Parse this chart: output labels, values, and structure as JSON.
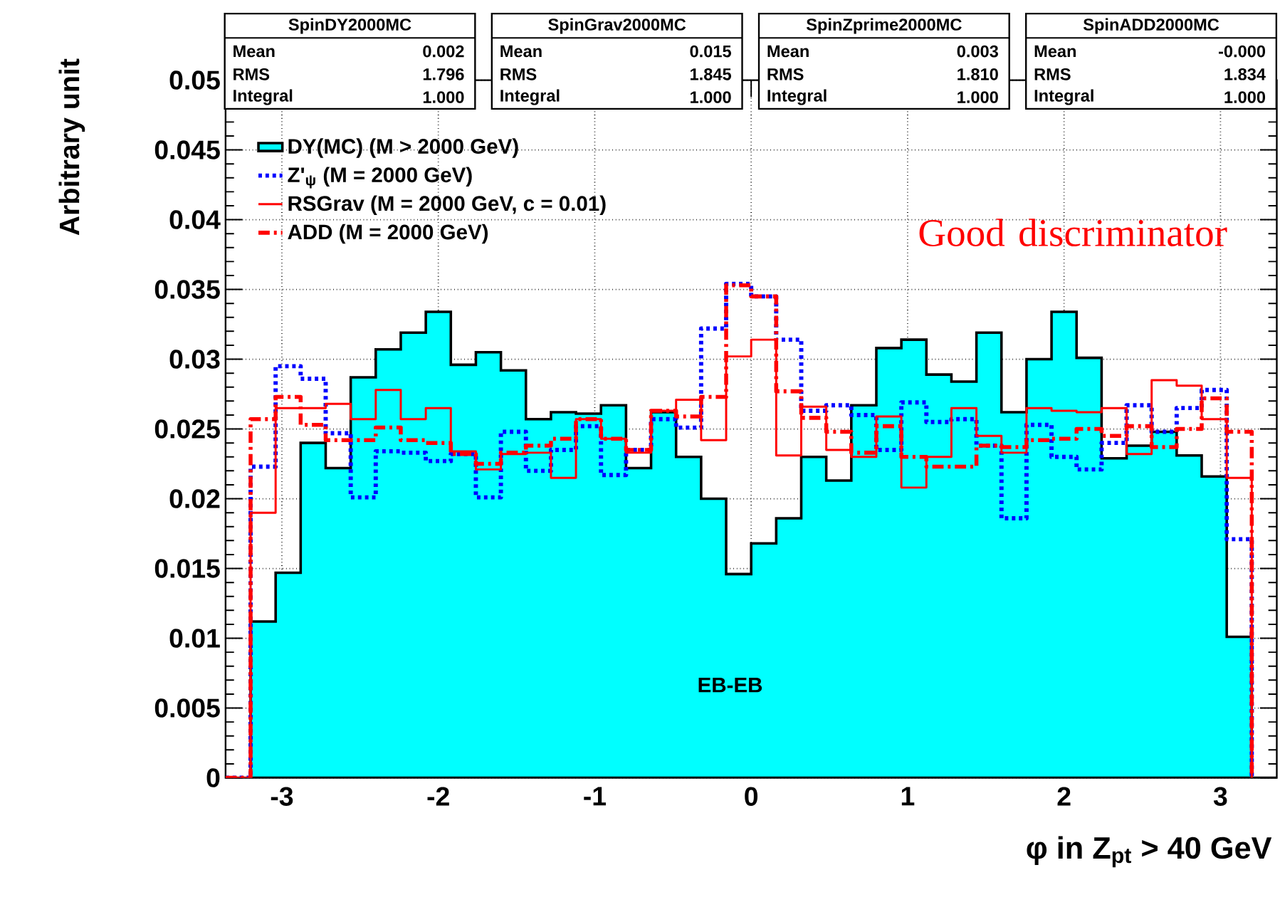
{
  "chart_data": {
    "type": "histogram",
    "xlabel": "φ in Z$_{pt}$ > 40 GeV",
    "ylabel": "Arbitrary unit",
    "bins": [
      -3.36,
      -3.2,
      -3.04,
      -2.88,
      -2.72,
      -2.56,
      -2.4,
      -2.24,
      -2.08,
      -1.92,
      -1.76,
      -1.6,
      -1.44,
      -1.28,
      -1.12,
      -0.96,
      -0.8,
      -0.64,
      -0.48,
      -0.32,
      -0.16,
      0,
      0.16,
      0.32,
      0.48,
      0.64,
      0.8,
      0.96,
      1.12,
      1.28,
      1.44,
      1.6,
      1.76,
      1.92,
      2.08,
      2.24,
      2.4,
      2.56,
      2.72,
      2.88,
      3.04,
      3.2,
      3.36
    ],
    "series": [
      {
        "name": "DY(MC) (M > 2000 GeV)",
        "color": "#00ffff",
        "line_style": "solid",
        "values": [
          0,
          0.0112,
          0.0147,
          0.024,
          0.0222,
          0.0287,
          0.0307,
          0.0319,
          0.0334,
          0.0296,
          0.0305,
          0.0292,
          0.0257,
          0.0262,
          0.0261,
          0.0267,
          0.0222,
          0.0262,
          0.023,
          0.02,
          0.0146,
          0.0168,
          0.0186,
          0.023,
          0.0213,
          0.0267,
          0.0308,
          0.0314,
          0.0289,
          0.0284,
          0.0319,
          0.0262,
          0.03,
          0.0334,
          0.0301,
          0.0229,
          0.0238,
          0.0248,
          0.0231,
          0.0216,
          0.0101,
          0
        ]
      },
      {
        "name": "Z'$_{ψ}$ (M = 2000 GeV)",
        "type": "step",
        "x": [
          -3.36,
          -3.2,
          -3.04,
          -2.88,
          -2.72,
          -2.56,
          -2.4,
          -2.24,
          -2.08,
          -1.92,
          -1.76,
          -1.6,
          -1.44,
          -1.28,
          -1.12,
          -0.96,
          -0.8,
          -0.64,
          -0.48,
          -0.32,
          -0.16,
          0,
          0.16,
          0.32,
          0.48,
          0.64,
          0.8,
          0.96,
          1.12,
          1.28,
          1.44,
          1.6,
          1.76,
          1.92,
          2.08,
          2.24,
          2.4,
          2.56,
          2.72,
          2.88,
          3.04,
          3.2
        ],
        "color": "#0000ff",
        "line_style": "dotted",
        "values": [
          0,
          0.0223,
          0.0295,
          0.0286,
          0.0247,
          0.0201,
          0.0234,
          0.0233,
          0.0227,
          0.0232,
          0.0201,
          0.0248,
          0.022,
          0.0235,
          0.0252,
          0.0217,
          0.0235,
          0.0257,
          0.0251,
          0.0322,
          0.0354,
          0.0345,
          0.0314,
          0.0263,
          0.0267,
          0.026,
          0.0235,
          0.0269,
          0.0255,
          0.0257,
          0.0238,
          0.0186,
          0.0253,
          0.023,
          0.0221,
          0.024,
          0.0267,
          0.0248,
          0.0265,
          0.0278,
          0.0171,
          0
        ]
      },
      {
        "name": "RSGrav (M = 2000 GeV, c = 0.01)",
        "type": "step",
        "x": [
          -3.36,
          -3.2,
          -3.04,
          -2.88,
          -2.72,
          -2.56,
          -2.4,
          -2.24,
          -2.08,
          -1.92,
          -1.76,
          -1.6,
          -1.44,
          -1.28,
          -1.12,
          -0.96,
          -0.8,
          -0.64,
          -0.48,
          -0.32,
          -0.16,
          0,
          0.16,
          0.32,
          0.48,
          0.64,
          0.8,
          0.96,
          1.12,
          1.28,
          1.44,
          1.6,
          1.76,
          1.92,
          2.08,
          2.24,
          2.4,
          2.56,
          2.72,
          2.88,
          3.04,
          3.2
        ],
        "color": "#ff0000",
        "line_style": "solid",
        "values": [
          0,
          0.019,
          0.0265,
          0.0265,
          0.0268,
          0.0257,
          0.0278,
          0.0257,
          0.0265,
          0.0234,
          0.0221,
          0.0232,
          0.0233,
          0.0215,
          0.0257,
          0.0243,
          0.0233,
          0.0263,
          0.0271,
          0.0242,
          0.0302,
          0.0314,
          0.0231,
          0.0266,
          0.0235,
          0.023,
          0.0259,
          0.0208,
          0.023,
          0.0265,
          0.0245,
          0.0233,
          0.0265,
          0.0263,
          0.0262,
          0.0265,
          0.0232,
          0.0285,
          0.0281,
          0.0257,
          0.0215,
          0
        ]
      },
      {
        "name": "ADD (M = 2000 GeV)",
        "type": "step",
        "x": [
          -3.36,
          -3.2,
          -3.04,
          -2.88,
          -2.72,
          -2.56,
          -2.4,
          -2.24,
          -2.08,
          -1.92,
          -1.76,
          -1.6,
          -1.44,
          -1.28,
          -1.12,
          -0.96,
          -0.8,
          -0.64,
          -0.48,
          -0.32,
          -0.16,
          0,
          0.16,
          0.32,
          0.48,
          0.64,
          0.8,
          0.96,
          1.12,
          1.28,
          1.44,
          1.6,
          1.76,
          1.92,
          2.08,
          2.24,
          2.4,
          2.56,
          2.72,
          2.88,
          3.04,
          3.2
        ],
        "color": "#ff0000",
        "line_style": "dashed",
        "values": [
          0,
          0.0257,
          0.0273,
          0.0253,
          0.0242,
          0.0242,
          0.0251,
          0.0242,
          0.024,
          0.0232,
          0.0225,
          0.0233,
          0.0238,
          0.0243,
          0.0257,
          0.0243,
          0.0235,
          0.0263,
          0.0259,
          0.0273,
          0.0353,
          0.0345,
          0.0277,
          0.0258,
          0.0248,
          0.0233,
          0.0252,
          0.023,
          0.0223,
          0.0223,
          0.0238,
          0.0237,
          0.0242,
          0.0243,
          0.025,
          0.0245,
          0.0252,
          0.0237,
          0.025,
          0.0272,
          0.0248,
          0
        ]
      }
    ],
    "xlim": [
      -3.36,
      3.36
    ],
    "ylim": [
      0,
      0.05
    ],
    "xticks": [
      -3,
      -2,
      -1,
      0,
      1,
      2,
      3
    ],
    "yticks": [
      0,
      0.005,
      0.01,
      0.015,
      0.02,
      0.025,
      0.03,
      0.035,
      0.04,
      0.045,
      0.05
    ],
    "grid": true,
    "legend": "top left",
    "annotations": [
      "SpinDY2000MC",
      "Mean",
      "0.002",
      "RMS",
      "1.796",
      "Integral",
      "1.000",
      "SpinGrav2000MC",
      "Mean",
      "0.015",
      "RMS",
      "1.845",
      "Integral",
      "1.000",
      "SpinZprime2000MC",
      "Mean",
      "0.003",
      "RMS",
      "1.810",
      "Integral",
      "1.000",
      "SpinADD2000MC",
      "Mean",
      "-0.000",
      "RMS",
      "1.834",
      "Integral",
      "1.000",
      "Good discriminator",
      "EB-EB"
    ]
  }
}
